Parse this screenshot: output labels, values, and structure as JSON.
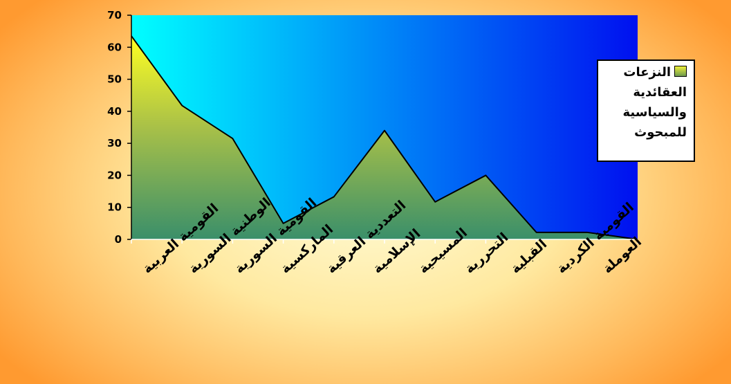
{
  "chart_data": {
    "type": "area",
    "categories": [
      "القومية العربية",
      "الوطنية السورية",
      "القومية السورية",
      "الماركسية",
      "التعددية العرقية",
      "الإسلامية",
      "المسيحية",
      "التحررية",
      "القبلية",
      "القومية الكردية",
      "العوملة"
    ],
    "series": [
      {
        "name": "النزعات العقائدية والسياسية للمبحوث",
        "values": [
          63.5,
          41.8,
          31.5,
          5,
          13.3,
          34,
          11.7,
          20,
          2.2,
          2.2,
          0
        ]
      }
    ],
    "yticks": [
      "0",
      "10",
      "20",
      "30",
      "40",
      "50",
      "60",
      "70"
    ],
    "ylim": [
      0,
      70
    ],
    "grid": false,
    "legend_position": "right",
    "colors": {
      "plot_bg_left": "#00ffff",
      "plot_bg_right": "#0010f0",
      "area_top": "#ffff22",
      "area_bottom": "#3a8f6a",
      "outline": "#000000"
    }
  }
}
